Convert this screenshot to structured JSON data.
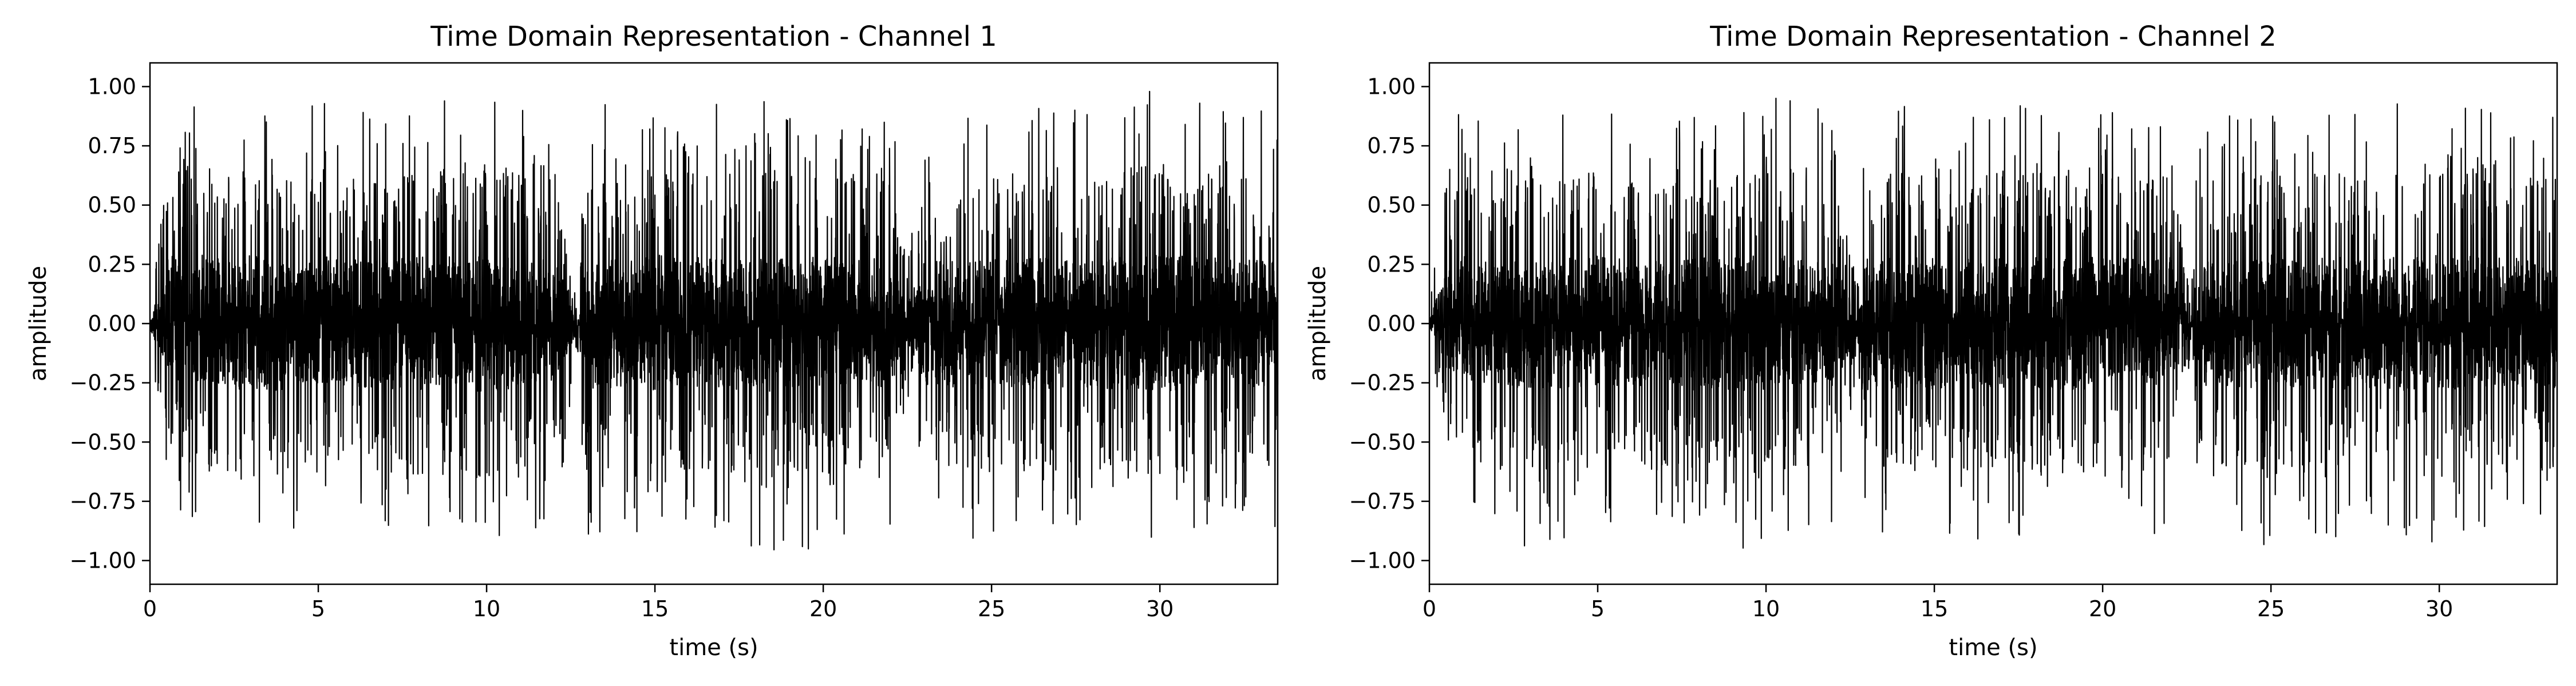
{
  "chart_data": [
    {
      "type": "line",
      "title": "Time Domain Representation - Channel 1",
      "xlabel": "time (s)",
      "ylabel": "amplitude",
      "xlim": [
        0,
        33.5
      ],
      "ylim": [
        -1.1,
        1.1
      ],
      "xticks": [
        0,
        5,
        10,
        15,
        20,
        25,
        30
      ],
      "xtick_labels": [
        "0",
        "5",
        "10",
        "15",
        "20",
        "25",
        "30"
      ],
      "yticks": [
        -1.0,
        -0.75,
        -0.5,
        -0.25,
        0.0,
        0.25,
        0.5,
        0.75,
        1.0
      ],
      "ytick_labels": [
        "−1.00",
        "−0.75",
        "−0.50",
        "−0.25",
        "0.00",
        "0.25",
        "0.50",
        "0.75",
        "1.00"
      ],
      "grid": false,
      "series": [
        {
          "color": "#000000",
          "envelope": {
            "t": [
              0,
              0.5,
              1,
              2,
              3,
              4,
              5,
              6,
              7,
              8,
              9,
              10,
              11,
              12,
              12.7,
              13,
              14,
              15,
              16,
              17,
              18,
              19,
              20,
              21,
              22,
              22.5,
              23,
              24,
              25,
              26,
              27,
              28,
              29,
              30,
              31,
              32,
              33.5
            ],
            "max": [
              0.05,
              0.96,
              0.98,
              0.95,
              0.96,
              0.92,
              0.95,
              0.9,
              0.88,
              0.95,
              0.97,
              0.96,
              0.93,
              0.9,
              0.2,
              0.9,
              0.95,
              0.97,
              0.95,
              0.92,
              0.95,
              0.93,
              0.97,
              0.9,
              0.95,
              0.3,
              0.9,
              0.88,
              0.95,
              0.92,
              0.93,
              0.9,
              0.95,
              1.0,
              0.95,
              0.92,
              0.9
            ],
            "min": [
              -0.05,
              -0.75,
              -0.85,
              -0.9,
              -1.0,
              -0.95,
              -0.85,
              -0.88,
              -0.92,
              -0.95,
              -0.9,
              -0.98,
              -0.9,
              -0.85,
              -0.2,
              -0.96,
              -0.9,
              -0.95,
              -0.92,
              -0.9,
              -0.98,
              -0.95,
              -0.97,
              -0.92,
              -0.9,
              -0.3,
              -0.88,
              -0.9,
              -0.95,
              -0.92,
              -0.93,
              -0.9,
              -0.96,
              -0.97,
              -0.9,
              -0.88,
              -0.9
            ]
          }
        }
      ]
    },
    {
      "type": "line",
      "title": "Time Domain Representation - Channel 2",
      "xlabel": "time (s)",
      "ylabel": "amplitude",
      "xlim": [
        0,
        33.5
      ],
      "ylim": [
        -1.1,
        1.1
      ],
      "xticks": [
        0,
        5,
        10,
        15,
        20,
        25,
        30
      ],
      "xtick_labels": [
        "0",
        "5",
        "10",
        "15",
        "20",
        "25",
        "30"
      ],
      "yticks": [
        -1.0,
        -0.75,
        -0.5,
        -0.25,
        0.0,
        0.25,
        0.5,
        0.75,
        1.0
      ],
      "ytick_labels": [
        "−1.00",
        "−0.75",
        "−0.50",
        "−0.25",
        "0.00",
        "0.25",
        "0.50",
        "0.75",
        "1.00"
      ],
      "grid": false,
      "series": [
        {
          "color": "#000000",
          "envelope": {
            "t": [
              0,
              0.5,
              1,
              2,
              3,
              4,
              5,
              6,
              7,
              8,
              9,
              10,
              11,
              12,
              12.7,
              13,
              14,
              15,
              16,
              17,
              18,
              19,
              20,
              21,
              22,
              22.5,
              23,
              24,
              25,
              26,
              27,
              28,
              29,
              30,
              31,
              32,
              33.5
            ],
            "max": [
              0.05,
              0.75,
              0.95,
              0.85,
              0.9,
              0.92,
              0.95,
              0.9,
              0.88,
              0.93,
              0.95,
              0.97,
              0.93,
              0.9,
              0.25,
              0.92,
              0.95,
              0.97,
              0.95,
              0.92,
              0.95,
              0.93,
              0.95,
              0.9,
              0.93,
              0.3,
              0.9,
              0.88,
              0.97,
              0.92,
              0.93,
              0.9,
              0.95,
              0.97,
              0.95,
              0.92,
              0.9
            ],
            "min": [
              -0.05,
              -0.65,
              -0.85,
              -0.9,
              -0.95,
              -0.92,
              -0.9,
              -0.88,
              -0.92,
              -0.95,
              -0.97,
              -0.98,
              -0.9,
              -0.88,
              -0.2,
              -0.95,
              -0.9,
              -0.95,
              -0.92,
              -0.9,
              -0.95,
              -0.93,
              -0.95,
              -0.92,
              -0.9,
              -0.3,
              -0.88,
              -0.9,
              -0.95,
              -0.92,
              -0.93,
              -0.9,
              -0.95,
              -0.97,
              -0.9,
              -0.88,
              -0.9
            ]
          }
        }
      ]
    }
  ]
}
